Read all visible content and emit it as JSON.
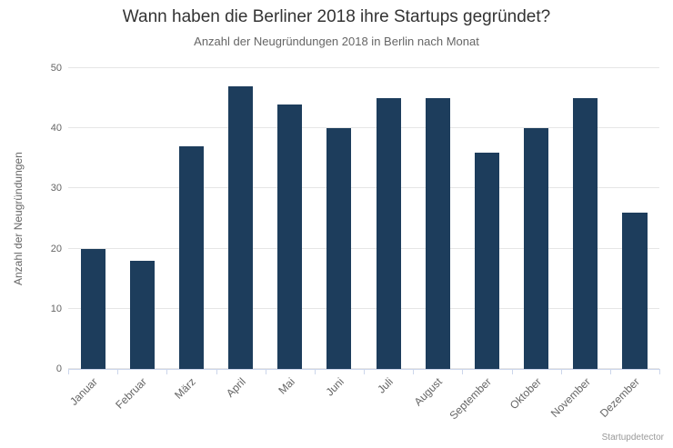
{
  "chart_data": {
    "type": "bar",
    "title": "Wann haben die Berliner 2018 ihre Startups gegründet?",
    "subtitle": "Anzahl der Neugründungen 2018 in Berlin nach Monat",
    "categories": [
      "Januar",
      "Februar",
      "März",
      "April",
      "Mai",
      "Juni",
      "Juli",
      "August",
      "September",
      "Oktober",
      "November",
      "Dezember"
    ],
    "values": [
      20,
      18,
      37,
      47,
      44,
      40,
      45,
      45,
      36,
      40,
      45,
      26
    ],
    "xlabel": "",
    "ylabel": "Anzahl der Neugründungen",
    "ylim": [
      0,
      50
    ],
    "yticks": [
      0,
      10,
      20,
      30,
      40,
      50
    ],
    "grid": true,
    "legend": "none",
    "bar_color": "#1d3d5c",
    "gridline_color": "#e6e6e6",
    "axis_line_color": "#ccd6eb",
    "title_color": "#333333",
    "label_color": "#666666",
    "credit": "Startupdetector"
  }
}
